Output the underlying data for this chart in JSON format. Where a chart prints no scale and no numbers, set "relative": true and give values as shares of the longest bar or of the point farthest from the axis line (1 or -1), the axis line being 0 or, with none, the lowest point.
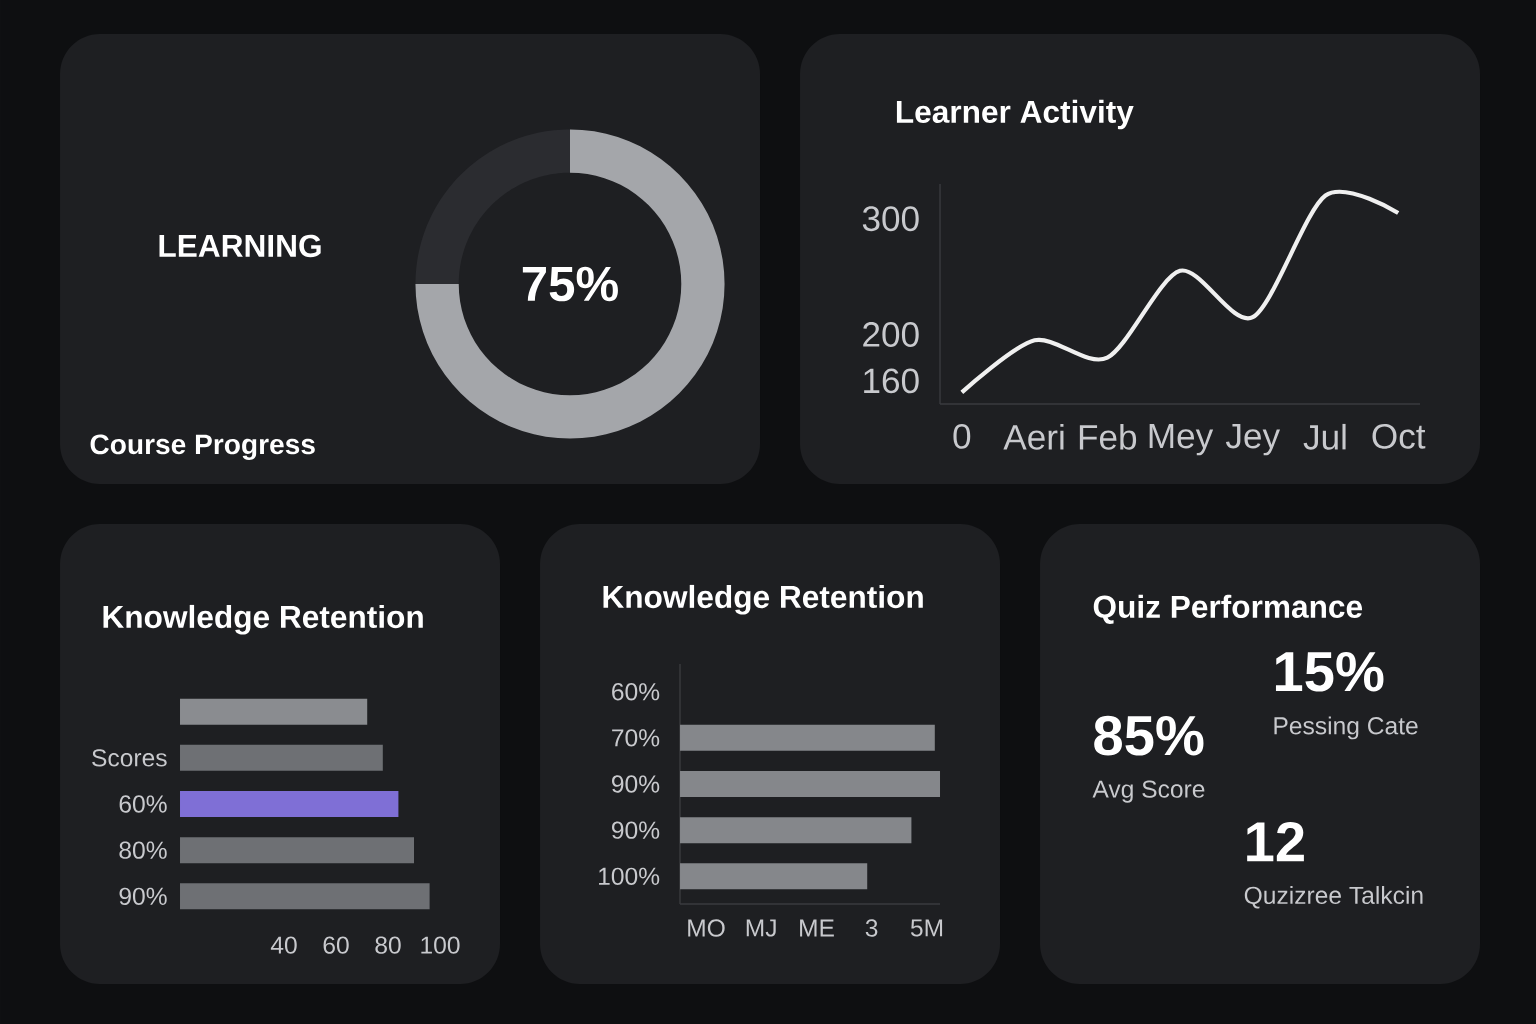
{
  "chart_data": [
    {
      "type": "donut",
      "title": "LEARNING",
      "categories": [
        null,
        null
      ],
      "values": [
        75,
        25
      ],
      "colors": [
        "#a4a6aa",
        "#2b2c30"
      ],
      "value_labels": [
        "75%",
        null
      ],
      "annotations": [
        "Course Progress"
      ]
    },
    {
      "type": "line",
      "title": "Learner Activity",
      "categories": [
        "0",
        "Aeri",
        "Feb",
        "Mey",
        "Jey",
        "Jul",
        "Oct"
      ],
      "values": [
        150,
        195,
        180,
        255,
        215,
        320,
        305
      ],
      "color": "#f0f0f0",
      "ylim": [
        140,
        330
      ],
      "yticks": [
        160,
        200,
        300
      ]
    },
    {
      "type": "bar",
      "orientation": "horizontal",
      "title": "Knowledge Retention",
      "categories": [
        null,
        "Scores",
        "60%",
        "80%",
        "90%"
      ],
      "values": [
        72,
        78,
        84,
        90,
        96
      ],
      "colors": [
        "#8a8c90",
        "#6e7074",
        "#7f6fd6",
        "#6e7074",
        "#6e7074"
      ],
      "xlim": [
        0,
        100
      ],
      "xticks": [
        40,
        60,
        80,
        100
      ]
    },
    {
      "type": "bar",
      "orientation": "horizontal",
      "relative": true,
      "title": "Knowledge Retention",
      "categories": [
        "60%",
        "70%",
        "90%",
        "90%",
        "100%"
      ],
      "values": [
        null,
        0.98,
        1,
        0.89,
        0.72
      ],
      "color": "#85878b",
      "annotations": [
        "MO",
        "MJ",
        "ME",
        "3",
        "5M"
      ]
    },
    {
      "type": "other",
      "title": "Quiz Performance",
      "annotations": [
        "85%",
        "Avg Score",
        "15%",
        "Pessing Cate",
        "12",
        "Quzizree Talkcin"
      ]
    }
  ]
}
